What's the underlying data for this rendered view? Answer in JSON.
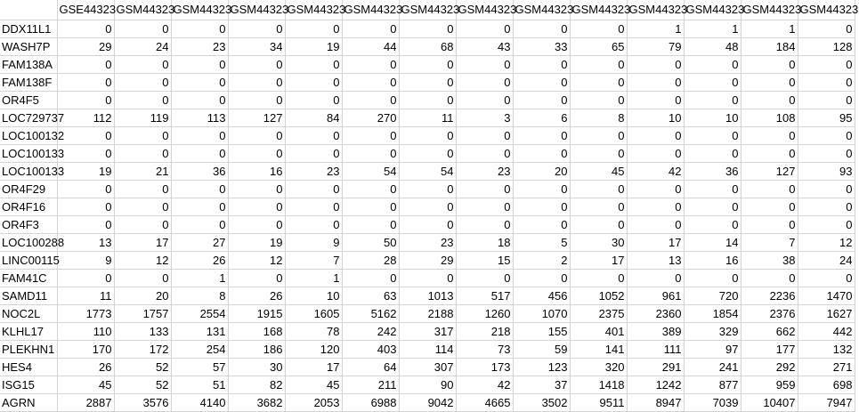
{
  "header": [
    "",
    "GSE44323",
    "GSM44323",
    "GSM44323",
    "GSM44323",
    "GSM44323",
    "GSM44323",
    "GSM44323",
    "GSM44323",
    "GSM44323",
    "GSM44323",
    "GSM44323",
    "GSM44323",
    "GSM44323",
    "GSM44323"
  ],
  "rows": [
    {
      "gene": "DDX11L1",
      "values": [
        0,
        0,
        0,
        0,
        0,
        0,
        0,
        0,
        0,
        0,
        1,
        1,
        1,
        0
      ]
    },
    {
      "gene": "WASH7P",
      "values": [
        29,
        24,
        23,
        34,
        19,
        44,
        68,
        43,
        33,
        65,
        79,
        48,
        184,
        128
      ]
    },
    {
      "gene": "FAM138A",
      "values": [
        0,
        0,
        0,
        0,
        0,
        0,
        0,
        0,
        0,
        0,
        0,
        0,
        0,
        0
      ]
    },
    {
      "gene": "FAM138F",
      "values": [
        0,
        0,
        0,
        0,
        0,
        0,
        0,
        0,
        0,
        0,
        0,
        0,
        0,
        0
      ]
    },
    {
      "gene": "OR4F5",
      "values": [
        0,
        0,
        0,
        0,
        0,
        0,
        0,
        0,
        0,
        0,
        0,
        0,
        0,
        0
      ]
    },
    {
      "gene": "LOC729737",
      "values": [
        112,
        119,
        113,
        127,
        84,
        270,
        11,
        3,
        6,
        8,
        10,
        10,
        108,
        95
      ]
    },
    {
      "gene": "LOC100132",
      "values": [
        0,
        0,
        0,
        0,
        0,
        0,
        0,
        0,
        0,
        0,
        0,
        0,
        0,
        0
      ]
    },
    {
      "gene": "LOC100133",
      "values": [
        0,
        0,
        0,
        0,
        0,
        0,
        0,
        0,
        0,
        0,
        0,
        0,
        0,
        0
      ]
    },
    {
      "gene": "LOC100133",
      "values": [
        19,
        21,
        36,
        16,
        23,
        54,
        54,
        23,
        20,
        45,
        42,
        36,
        127,
        93
      ]
    },
    {
      "gene": "OR4F29",
      "values": [
        0,
        0,
        0,
        0,
        0,
        0,
        0,
        0,
        0,
        0,
        0,
        0,
        0,
        0
      ]
    },
    {
      "gene": "OR4F16",
      "values": [
        0,
        0,
        0,
        0,
        0,
        0,
        0,
        0,
        0,
        0,
        0,
        0,
        0,
        0
      ]
    },
    {
      "gene": "OR4F3",
      "values": [
        0,
        0,
        0,
        0,
        0,
        0,
        0,
        0,
        0,
        0,
        0,
        0,
        0,
        0
      ]
    },
    {
      "gene": "LOC100288",
      "values": [
        13,
        17,
        27,
        19,
        9,
        50,
        23,
        18,
        5,
        30,
        17,
        14,
        7,
        12
      ]
    },
    {
      "gene": "LINC00115",
      "values": [
        9,
        12,
        26,
        12,
        7,
        28,
        29,
        15,
        2,
        17,
        13,
        16,
        38,
        24
      ]
    },
    {
      "gene": "FAM41C",
      "values": [
        0,
        0,
        1,
        0,
        1,
        0,
        0,
        0,
        0,
        0,
        0,
        0,
        0,
        0
      ]
    },
    {
      "gene": "SAMD11",
      "values": [
        11,
        20,
        8,
        26,
        10,
        63,
        1013,
        517,
        456,
        1052,
        961,
        720,
        2236,
        1470
      ]
    },
    {
      "gene": "NOC2L",
      "values": [
        1773,
        1757,
        2554,
        1915,
        1605,
        5162,
        2188,
        1260,
        1070,
        2375,
        2360,
        1854,
        2376,
        1627
      ]
    },
    {
      "gene": "KLHL17",
      "values": [
        110,
        133,
        131,
        168,
        78,
        242,
        317,
        218,
        155,
        401,
        389,
        329,
        662,
        442
      ]
    },
    {
      "gene": "PLEKHN1",
      "values": [
        170,
        172,
        254,
        186,
        120,
        403,
        114,
        73,
        59,
        141,
        111,
        97,
        177,
        132
      ]
    },
    {
      "gene": "HES4",
      "values": [
        26,
        52,
        57,
        30,
        17,
        64,
        307,
        173,
        123,
        320,
        291,
        241,
        292,
        271
      ]
    },
    {
      "gene": "ISG15",
      "values": [
        45,
        52,
        51,
        82,
        45,
        211,
        90,
        42,
        37,
        1418,
        1242,
        877,
        959,
        698
      ]
    },
    {
      "gene": "AGRN",
      "values": [
        2887,
        3576,
        4140,
        3682,
        2053,
        6988,
        9042,
        4665,
        3502,
        9511,
        8947,
        7039,
        10407,
        7947
      ]
    }
  ]
}
